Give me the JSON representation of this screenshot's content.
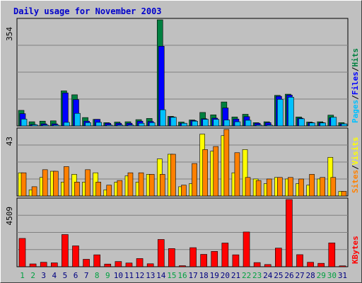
{
  "title": "Daily usage for November 2003",
  "colors": {
    "background": "#c0c0c0",
    "plot_background": "#c0c0c0",
    "title": "#0000cc",
    "hits": "#008040",
    "files": "#0000ff",
    "pages": "#00c0ff",
    "visits": "#ffff00",
    "sites": "#ff8000",
    "kbytes": "#ff0000",
    "weekend_day": "#00a040",
    "weekday_day": "#000080"
  },
  "chart_data": [
    {
      "type": "bar",
      "panel": "hits-files-pages",
      "ylabel_max": "354",
      "legend": [
        "Pages",
        "/",
        "Files",
        "/",
        "Hits"
      ],
      "ylim": [
        0,
        354
      ],
      "categories": [
        "1",
        "2",
        "3",
        "4",
        "5",
        "6",
        "7",
        "8",
        "9",
        "10",
        "11",
        "12",
        "13",
        "14",
        "15",
        "16",
        "17",
        "18",
        "19",
        "20",
        "21",
        "22",
        "23",
        "24",
        "25",
        "26",
        "27",
        "28",
        "29",
        "30",
        "31"
      ],
      "series": [
        {
          "name": "Hits",
          "values": [
            52,
            14,
            16,
            17,
            117,
            104,
            28,
            22,
            11,
            13,
            14,
            21,
            25,
            354,
            32,
            13,
            20,
            45,
            37,
            80,
            30,
            39,
            11,
            14,
            102,
            106,
            30,
            13,
            14,
            36,
            11
          ]
        },
        {
          "name": "Files",
          "values": [
            41,
            5,
            7,
            7,
            110,
            88,
            16,
            22,
            9,
            9,
            9,
            16,
            15,
            266,
            30,
            9,
            18,
            24,
            26,
            60,
            23,
            31,
            9,
            11,
            99,
            103,
            26,
            11,
            11,
            27,
            7
          ]
        },
        {
          "name": "Pages",
          "values": [
            23,
            4,
            3,
            3,
            12,
            42,
            11,
            12,
            3,
            3,
            3,
            9,
            11,
            54,
            29,
            9,
            16,
            22,
            22,
            20,
            14,
            19,
            3,
            3,
            89,
            96,
            24,
            10,
            10,
            29,
            7
          ]
        }
      ]
    },
    {
      "type": "bar",
      "panel": "visits-sites",
      "ylabel_max": "43",
      "legend": [
        "Sites",
        "/",
        "Visits"
      ],
      "ylim": [
        0,
        43
      ],
      "categories": [
        "1",
        "2",
        "3",
        "4",
        "5",
        "6",
        "7",
        "8",
        "9",
        "10",
        "11",
        "12",
        "13",
        "14",
        "15",
        "16",
        "17",
        "18",
        "19",
        "20",
        "21",
        "22",
        "23",
        "24",
        "25",
        "26",
        "27",
        "28",
        "29",
        "30",
        "31"
      ],
      "series": [
        {
          "name": "Visits",
          "values": [
            15,
            4,
            12,
            16,
            9,
            14,
            9,
            15,
            4,
            9,
            13,
            9,
            14,
            24,
            27,
            6,
            8,
            40,
            29,
            39,
            15,
            30,
            11,
            8,
            12,
            11,
            8,
            7,
            11,
            25,
            3
          ]
        },
        {
          "name": "Sites",
          "values": [
            15,
            6,
            17,
            16,
            19,
            9,
            17,
            9,
            7,
            10,
            15,
            15,
            14,
            14,
            27,
            7,
            21,
            30,
            32,
            43,
            28,
            12,
            10,
            11,
            12,
            12,
            11,
            14,
            12,
            12,
            3
          ]
        }
      ]
    },
    {
      "type": "bar",
      "panel": "kbytes",
      "ylabel_max": "4509",
      "legend": [
        "KBytes"
      ],
      "ylim": [
        0,
        4509
      ],
      "categories": [
        "1",
        "2",
        "3",
        "4",
        "5",
        "6",
        "7",
        "8",
        "9",
        "10",
        "11",
        "12",
        "13",
        "14",
        "15",
        "16",
        "17",
        "18",
        "19",
        "20",
        "21",
        "22",
        "23",
        "24",
        "25",
        "26",
        "27",
        "28",
        "29",
        "30",
        "31"
      ],
      "series": [
        {
          "name": "KBytes",
          "values": [
            1900,
            190,
            300,
            260,
            2160,
            1400,
            500,
            800,
            180,
            350,
            250,
            550,
            200,
            1830,
            1220,
            70,
            1280,
            830,
            1030,
            1590,
            800,
            2330,
            280,
            150,
            1250,
            4509,
            810,
            300,
            230,
            1600,
            60
          ]
        }
      ]
    }
  ],
  "days": [
    {
      "label": "1",
      "weekend": true
    },
    {
      "label": "2",
      "weekend": true
    },
    {
      "label": "3",
      "weekend": false
    },
    {
      "label": "4",
      "weekend": false
    },
    {
      "label": "5",
      "weekend": false
    },
    {
      "label": "6",
      "weekend": false
    },
    {
      "label": "7",
      "weekend": false
    },
    {
      "label": "8",
      "weekend": true
    },
    {
      "label": "9",
      "weekend": true
    },
    {
      "label": "10",
      "weekend": false
    },
    {
      "label": "11",
      "weekend": false
    },
    {
      "label": "12",
      "weekend": false
    },
    {
      "label": "13",
      "weekend": false
    },
    {
      "label": "14",
      "weekend": false
    },
    {
      "label": "15",
      "weekend": true
    },
    {
      "label": "16",
      "weekend": true
    },
    {
      "label": "17",
      "weekend": false
    },
    {
      "label": "18",
      "weekend": false
    },
    {
      "label": "19",
      "weekend": false
    },
    {
      "label": "20",
      "weekend": false
    },
    {
      "label": "21",
      "weekend": false
    },
    {
      "label": "22",
      "weekend": true
    },
    {
      "label": "23",
      "weekend": true
    },
    {
      "label": "24",
      "weekend": false
    },
    {
      "label": "25",
      "weekend": false
    },
    {
      "label": "26",
      "weekend": false
    },
    {
      "label": "27",
      "weekend": false
    },
    {
      "label": "28",
      "weekend": false
    },
    {
      "label": "29",
      "weekend": true
    },
    {
      "label": "30",
      "weekend": true
    },
    {
      "label": "31",
      "weekend": false
    }
  ]
}
